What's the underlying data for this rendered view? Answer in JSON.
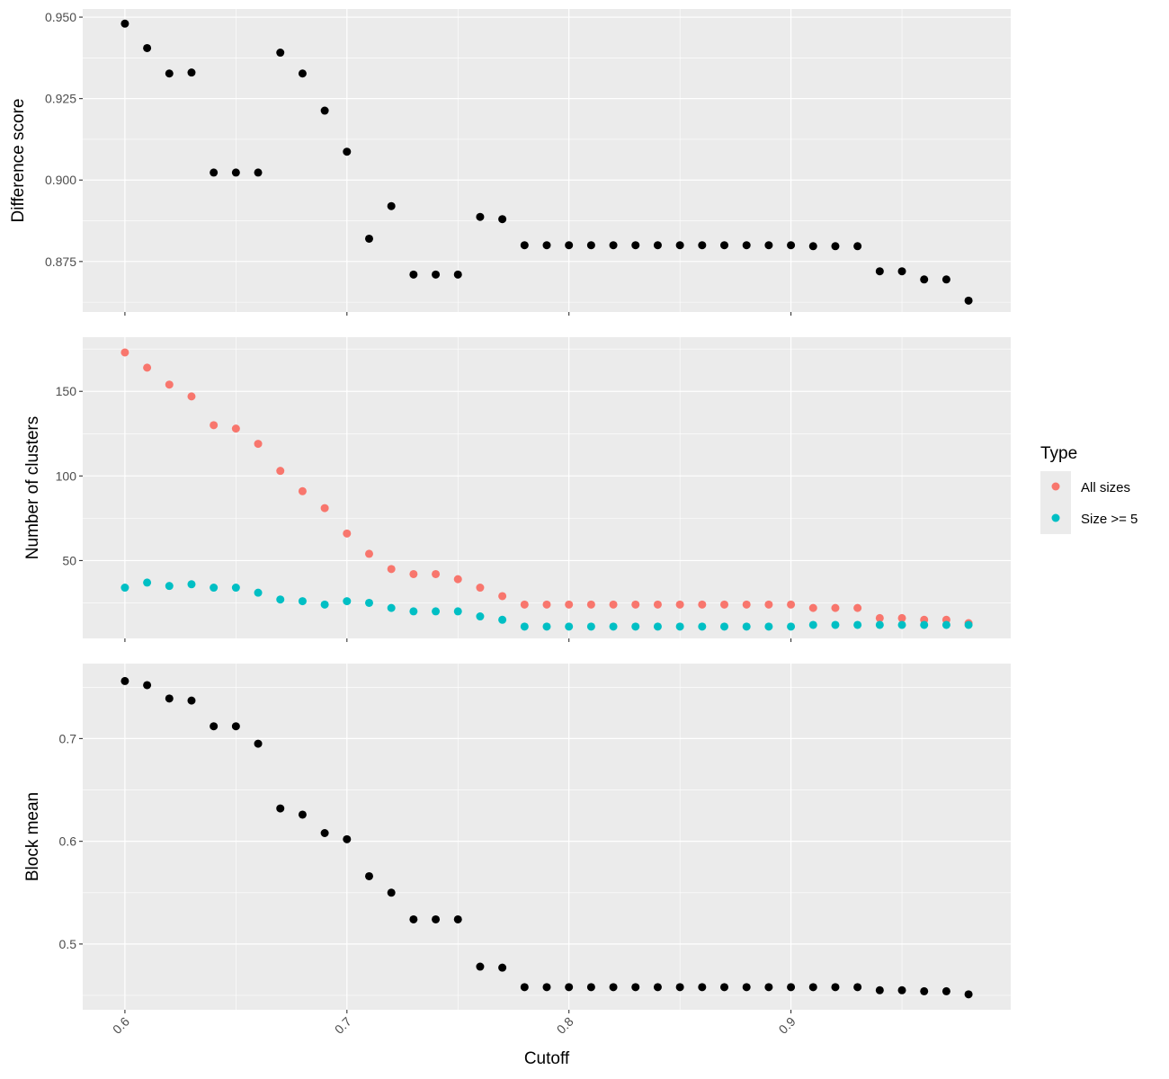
{
  "chart_data": {
    "type": "scatter",
    "layout": "three vertically stacked facets sharing x-axis",
    "x": [
      0.6,
      0.61,
      0.62,
      0.63,
      0.64,
      0.65,
      0.66,
      0.67,
      0.68,
      0.69,
      0.7,
      0.71,
      0.72,
      0.73,
      0.74,
      0.75,
      0.76,
      0.77,
      0.78,
      0.79,
      0.8,
      0.81,
      0.82,
      0.83,
      0.84,
      0.85,
      0.86,
      0.87,
      0.88,
      0.89,
      0.9,
      0.91,
      0.92,
      0.93,
      0.94,
      0.95,
      0.96,
      0.97,
      0.98
    ],
    "xlabel": "Cutoff",
    "xlim": [
      0.581,
      0.999
    ],
    "xticks": [
      0.6,
      0.7,
      0.8,
      0.9
    ],
    "xtick_labels": [
      "0.6",
      "0.7",
      "0.8",
      "0.9"
    ],
    "grid": true,
    "panels": [
      {
        "ylabel": "Difference score",
        "ylim": [
          0.8595,
          0.9525
        ],
        "yticks": [
          0.95,
          0.925,
          0.9,
          0.875
        ],
        "ytick_labels": [
          "0.950",
          "0.925",
          "0.900",
          "0.875"
        ],
        "series": [
          {
            "name": "Difference score",
            "color": "#000000",
            "values": [
              0.948,
              0.9405,
              0.9327,
              0.933,
              0.9023,
              0.9023,
              0.9023,
              0.9391,
              0.9327,
              0.9213,
              0.9087,
              0.882,
              0.892,
              0.871,
              0.871,
              0.871,
              0.8887,
              0.888,
              0.88,
              0.88,
              0.88,
              0.88,
              0.88,
              0.88,
              0.88,
              0.88,
              0.88,
              0.88,
              0.88,
              0.88,
              0.88,
              0.8797,
              0.8797,
              0.8797,
              0.872,
              0.872,
              0.8695,
              0.8695,
              0.863
            ]
          }
        ]
      },
      {
        "ylabel": "Number of clusters",
        "ylim": [
          4,
          182
        ],
        "yticks": [
          150,
          100,
          50
        ],
        "ytick_labels": [
          "150",
          "100",
          "50"
        ],
        "series": [
          {
            "name": "All sizes",
            "color": "#F8766D",
            "values": [
              173,
              164,
              154,
              147,
              130,
              128,
              119,
              103,
              91,
              81,
              66,
              54,
              45,
              42,
              42,
              39,
              34,
              29,
              24,
              24,
              24,
              24,
              24,
              24,
              24,
              24,
              24,
              24,
              24,
              24,
              24,
              22,
              22,
              22,
              16,
              16,
              15,
              15,
              13
            ]
          },
          {
            "name": "Size >= 5",
            "color": "#00BFC4",
            "values": [
              34,
              37,
              35,
              36,
              34,
              34,
              31,
              27,
              26,
              24,
              26,
              25,
              22,
              20,
              20,
              20,
              17,
              15,
              11,
              11,
              11,
              11,
              11,
              11,
              11,
              11,
              11,
              11,
              11,
              11,
              11,
              12,
              12,
              12,
              12,
              12,
              12,
              12,
              12
            ]
          }
        ]
      },
      {
        "ylabel": "Block mean",
        "ylim": [
          0.436,
          0.773
        ],
        "yticks": [
          0.7,
          0.6,
          0.5
        ],
        "ytick_labels": [
          "0.7",
          "0.6",
          "0.5"
        ],
        "series": [
          {
            "name": "Block mean",
            "color": "#000000",
            "values": [
              0.756,
              0.752,
              0.739,
              0.737,
              0.712,
              0.712,
              0.695,
              0.632,
              0.626,
              0.608,
              0.602,
              0.566,
              0.55,
              0.524,
              0.524,
              0.524,
              0.478,
              0.477,
              0.458,
              0.458,
              0.458,
              0.458,
              0.458,
              0.458,
              0.458,
              0.458,
              0.458,
              0.458,
              0.458,
              0.458,
              0.458,
              0.458,
              0.458,
              0.458,
              0.455,
              0.455,
              0.454,
              0.454,
              0.451
            ]
          }
        ]
      }
    ],
    "legend": {
      "title": "Type",
      "placement": "right",
      "entries": [
        {
          "label": "All sizes",
          "color": "#F8766D"
        },
        {
          "label": "Size >= 5",
          "color": "#00BFC4"
        }
      ]
    }
  }
}
